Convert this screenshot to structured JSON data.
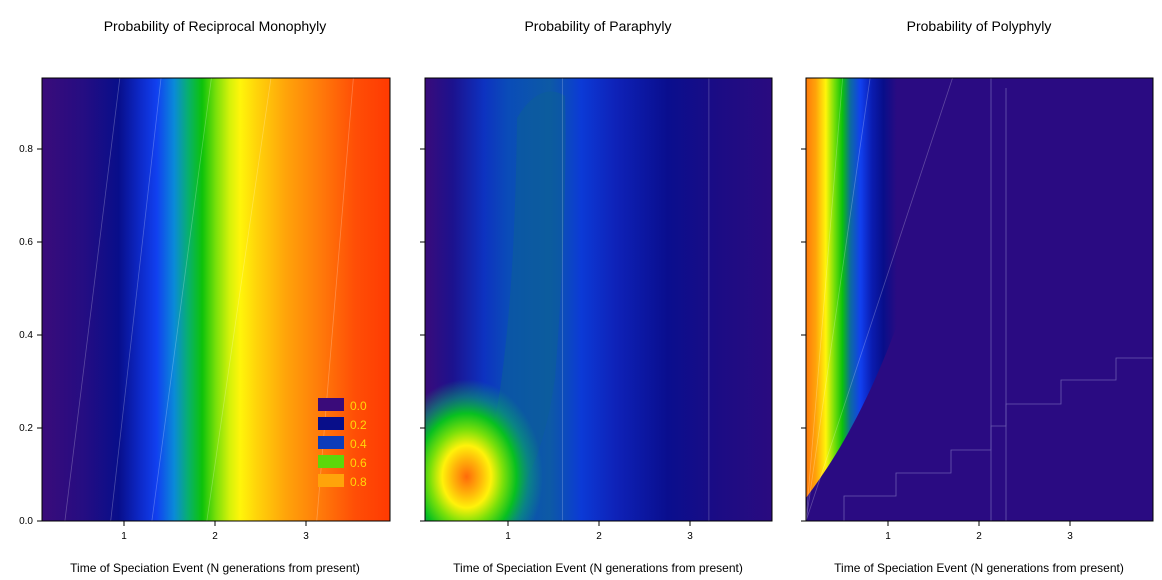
{
  "chart_data": [
    {
      "type": "heatmap",
      "title": "Probability of Reciprocal Monophyly",
      "xlabel": "Time of Speciation Event (N generations from present)",
      "ylabel": "",
      "xlim": [
        0.1,
        3.9
      ],
      "ylim": [
        0.0,
        0.95
      ],
      "xticks": [
        "1",
        "2",
        "3"
      ],
      "yticks": [
        "0.0",
        "0.2",
        "0.4",
        "0.6",
        "0.8"
      ],
      "legend": {
        "position": "bottom-right",
        "entries": [
          {
            "label": "0.0",
            "color": "#3a0b7a"
          },
          {
            "label": "0.2",
            "color": "#080e8a"
          },
          {
            "label": "0.4",
            "color": "#0c3cba"
          },
          {
            "label": "0.6",
            "color": "#5cd80a"
          },
          {
            "label": "0.8",
            "color": "#ffa40a"
          }
        ]
      },
      "contour_boundaries": [
        {
          "level": 0.1,
          "x_at_y0": 0.35,
          "x_at_ymax": 0.95
        },
        {
          "level": 0.3,
          "x_at_y0": 0.85,
          "x_at_ymax": 1.4
        },
        {
          "level": 0.5,
          "x_at_y0": 1.3,
          "x_at_ymax": 1.95
        },
        {
          "level": 0.7,
          "x_at_y0": 1.9,
          "x_at_ymax": 2.6
        },
        {
          "level": 0.9,
          "x_at_y0": 3.1,
          "x_at_ymax": 3.5
        }
      ]
    },
    {
      "type": "heatmap",
      "title": "Probability of Paraphyly",
      "xlabel": "Time of Speciation Event (N generations from present)",
      "ylabel": "",
      "xlim": [
        0.1,
        3.9
      ],
      "ylim": [
        0.0,
        0.95
      ],
      "xticks": [
        "1",
        "2",
        "3"
      ],
      "yticks": [
        "0.0",
        "0.2",
        "0.4",
        "0.6",
        "0.8"
      ],
      "peak": {
        "x": 0.65,
        "y": 0.1,
        "value": 0.8
      },
      "contour_boundaries": [
        {
          "level": 0.1,
          "x_at_y0": 3.2,
          "x_at_ymax": 3.2
        },
        {
          "level": 0.3,
          "x_at_y0": 1.6,
          "x_at_ymax": 1.6
        }
      ]
    },
    {
      "type": "heatmap",
      "title": "Probability of Polyphyly",
      "xlabel": "Time of Speciation Event (N generations from present)",
      "ylabel": "",
      "xlim": [
        0.1,
        3.9
      ],
      "ylim": [
        0.0,
        0.95
      ],
      "xticks": [
        "1",
        "2",
        "3"
      ],
      "yticks": [
        "0.0",
        "0.2",
        "0.4",
        "0.6",
        "0.8"
      ],
      "contour_boundaries": [
        {
          "level": 0.1,
          "x_at_y0": 0.1,
          "x_at_ymax": 1.7
        },
        {
          "level": 0.5,
          "x_at_y0": 0.1,
          "x_at_ymax": 0.8
        },
        {
          "level": 0.7,
          "x_at_y0": 0.1,
          "x_at_ymax": 0.5
        }
      ]
    }
  ]
}
